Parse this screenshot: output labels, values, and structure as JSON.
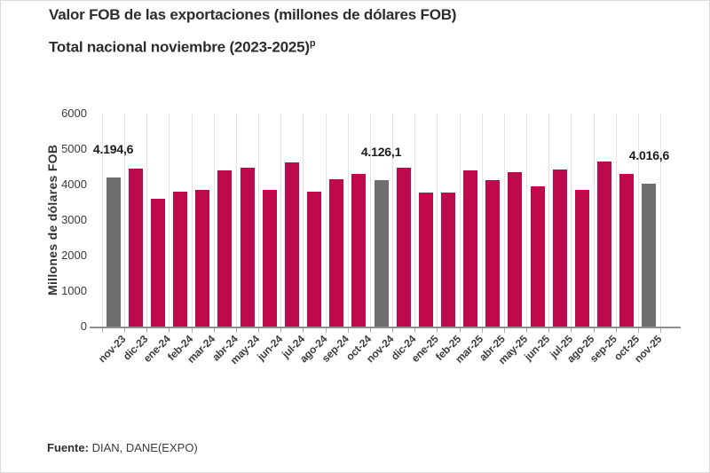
{
  "chart_data": {
    "type": "bar",
    "title": "Valor FOB de las exportaciones (millones de dólares FOB)",
    "subtitle": "Total nacional noviembre (2023-2025)",
    "subtitle_superscript": "p",
    "ylabel": "Millones de dólares FOB",
    "xlabel": "",
    "ylim": [
      0,
      6000
    ],
    "yticks": [
      0,
      1000,
      2000,
      3000,
      4000,
      5000,
      6000
    ],
    "grid": "vertical-only",
    "legend": "none",
    "categories": [
      "nov-23",
      "dic-23",
      "ene-24",
      "feb-24",
      "mar-24",
      "abr-24",
      "may-24",
      "jun-24",
      "jul-24",
      "ago-24",
      "sep-24",
      "oct-24",
      "nov-24",
      "dic-24",
      "ene-25",
      "feb-25",
      "mar-25",
      "abr-25",
      "may-25",
      "jun-25",
      "jul-25",
      "ago-25",
      "sep-25",
      "oct-25",
      "nov-25"
    ],
    "values": [
      4194.6,
      4460,
      3600,
      3810,
      3860,
      4410,
      4470,
      3840,
      4630,
      3810,
      4150,
      4300,
      4126.1,
      4470,
      3780,
      3780,
      4390,
      4120,
      4350,
      3940,
      4430,
      3860,
      4650,
      4310,
      4016.6
    ],
    "highlight_indices": [
      0,
      12,
      24
    ],
    "bar_color": "#BE0A4D",
    "highlight_color": "#6F6F6F",
    "annotations": [
      {
        "index": 0,
        "label": "4.194,6"
      },
      {
        "index": 12,
        "label": "4.126,1"
      },
      {
        "index": 24,
        "label": "4.016,6"
      }
    ]
  },
  "footer": {
    "source_label": "Fuente:",
    "source_text": "DIAN, DANE(EXPO)"
  }
}
